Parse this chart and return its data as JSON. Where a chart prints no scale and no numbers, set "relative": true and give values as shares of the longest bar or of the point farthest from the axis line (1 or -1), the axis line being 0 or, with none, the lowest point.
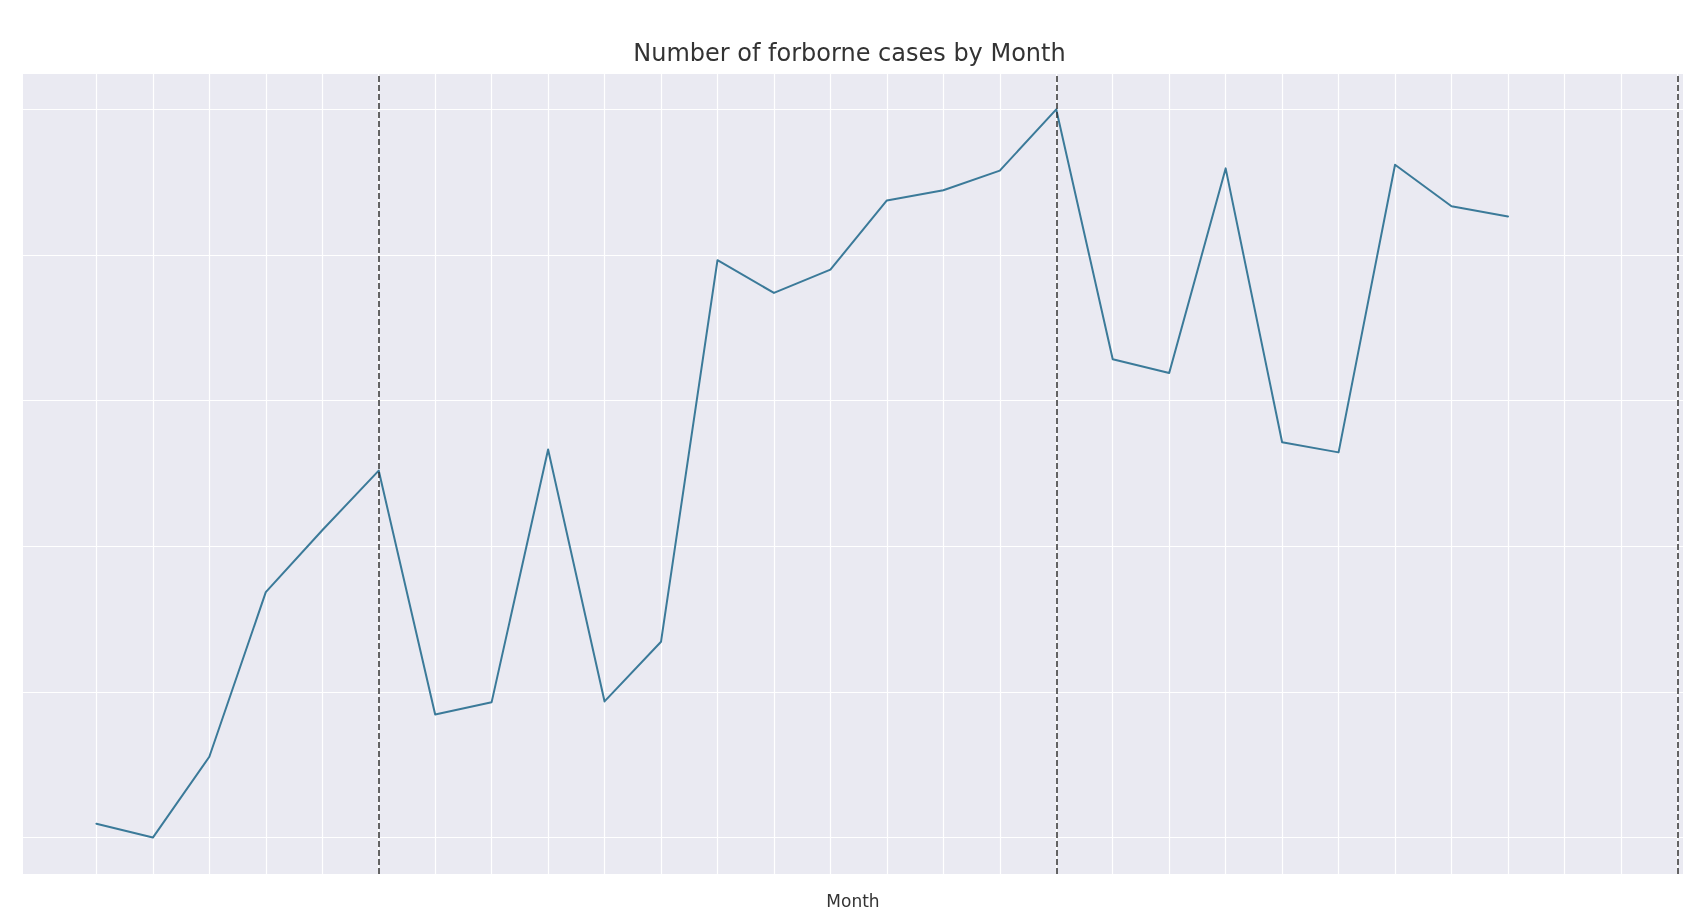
{
  "chart_data": {
    "type": "line",
    "title": "Number of forborne cases by Month",
    "xlabel": "Month",
    "relative": true,
    "grid": true,
    "marker": "none",
    "line_style": "solid",
    "categories": [
      null,
      null,
      null,
      null,
      null,
      null,
      null,
      null,
      null,
      null,
      null,
      null,
      null,
      null,
      null,
      null,
      null,
      null,
      null,
      null,
      null,
      null,
      null,
      null,
      null,
      null,
      null,
      null,
      null
    ],
    "series": [
      {
        "color": "#3b7a99",
        "values": [
          0.019,
          0,
          0.111,
          0.337,
          0.422,
          0.504,
          0.169,
          0.186,
          0.533,
          0.187,
          0.269,
          0.793,
          0.748,
          0.78,
          0.875,
          0.889,
          0.916,
          1,
          0.657,
          0.638,
          0.919,
          0.543,
          0.529,
          0.924,
          0.867,
          0.853,
          null,
          null,
          null
        ]
      }
    ]
  }
}
